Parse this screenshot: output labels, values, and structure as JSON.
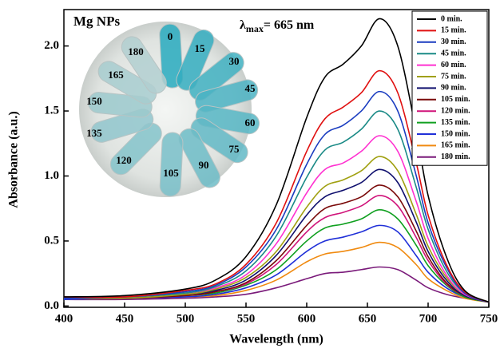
{
  "chart_data": {
    "type": "line",
    "x_label": "Wavelength (nm)",
    "y_label": "Absorbance (a.u.)",
    "inset_title": "Mg NPs",
    "peak_label": {
      "symbol": "λ",
      "subscript": "max",
      "text": "= 665 nm"
    },
    "inset_labels": [
      "0",
      "15",
      "30",
      "45",
      "60",
      "75",
      "90",
      "105",
      "120",
      "135",
      "150",
      "165",
      "180"
    ],
    "x": [
      400,
      450,
      500,
      525,
      550,
      575,
      600,
      615,
      630,
      645,
      660,
      675,
      690,
      700,
      715,
      730,
      750
    ],
    "xlim": [
      400,
      750
    ],
    "xticks": [
      400,
      450,
      500,
      550,
      600,
      650,
      700,
      750
    ],
    "ylim": [
      -0.01,
      2.28
    ],
    "yticks": [
      {
        "value": 0,
        "label": "0.0"
      },
      0.5,
      {
        "value": 1,
        "label": "1.0"
      },
      1.5,
      {
        "value": 2,
        "label": "2.0"
      }
    ],
    "legend": "upper right",
    "series": [
      {
        "name": "0 min.",
        "color": "#000000",
        "values": [
          0.07,
          0.08,
          0.13,
          0.2,
          0.38,
          0.78,
          1.45,
          1.76,
          1.86,
          2.0,
          2.21,
          2.0,
          1.35,
          0.85,
          0.38,
          0.12,
          0.03
        ]
      },
      {
        "name": "15 min.",
        "color": "#e01010",
        "values": [
          0.07,
          0.07,
          0.12,
          0.17,
          0.32,
          0.64,
          1.19,
          1.44,
          1.53,
          1.64,
          1.81,
          1.64,
          1.11,
          0.7,
          0.32,
          0.11,
          0.03
        ]
      },
      {
        "name": "30 min.",
        "color": "#1a3cc0",
        "values": [
          0.06,
          0.07,
          0.11,
          0.16,
          0.3,
          0.59,
          1.09,
          1.32,
          1.39,
          1.5,
          1.65,
          1.5,
          1.01,
          0.64,
          0.3,
          0.1,
          0.03
        ]
      },
      {
        "name": "45 min.",
        "color": "#1a8a86",
        "values": [
          0.06,
          0.07,
          0.1,
          0.15,
          0.27,
          0.54,
          0.99,
          1.2,
          1.26,
          1.36,
          1.5,
          1.36,
          0.92,
          0.59,
          0.27,
          0.1,
          0.03
        ]
      },
      {
        "name": "60 min.",
        "color": "#ff30d0",
        "values": [
          0.06,
          0.07,
          0.1,
          0.14,
          0.24,
          0.48,
          0.87,
          1.05,
          1.1,
          1.19,
          1.31,
          1.19,
          0.81,
          0.52,
          0.24,
          0.09,
          0.03
        ]
      },
      {
        "name": "75 min.",
        "color": "#a0a010",
        "values": [
          0.06,
          0.06,
          0.09,
          0.13,
          0.22,
          0.42,
          0.76,
          0.92,
          0.97,
          1.04,
          1.15,
          1.04,
          0.71,
          0.46,
          0.22,
          0.09,
          0.03
        ]
      },
      {
        "name": "90 min.",
        "color": "#10106e",
        "values": [
          0.06,
          0.06,
          0.09,
          0.12,
          0.2,
          0.39,
          0.7,
          0.84,
          0.89,
          0.95,
          1.05,
          0.95,
          0.65,
          0.42,
          0.2,
          0.08,
          0.03
        ]
      },
      {
        "name": "105 min.",
        "color": "#7a0a0a",
        "values": [
          0.06,
          0.06,
          0.08,
          0.11,
          0.18,
          0.35,
          0.62,
          0.75,
          0.79,
          0.84,
          0.93,
          0.84,
          0.58,
          0.38,
          0.18,
          0.08,
          0.03
        ]
      },
      {
        "name": "120 min.",
        "color": "#d0147a",
        "values": [
          0.06,
          0.06,
          0.08,
          0.11,
          0.17,
          0.32,
          0.57,
          0.68,
          0.72,
          0.77,
          0.85,
          0.77,
          0.53,
          0.35,
          0.17,
          0.08,
          0.03
        ]
      },
      {
        "name": "135 min.",
        "color": "#10a020",
        "values": [
          0.06,
          0.06,
          0.08,
          0.1,
          0.16,
          0.28,
          0.5,
          0.6,
          0.63,
          0.67,
          0.74,
          0.67,
          0.47,
          0.31,
          0.16,
          0.07,
          0.03
        ]
      },
      {
        "name": "150 min.",
        "color": "#2030d8",
        "values": [
          0.05,
          0.06,
          0.07,
          0.09,
          0.14,
          0.24,
          0.42,
          0.5,
          0.53,
          0.57,
          0.62,
          0.57,
          0.39,
          0.26,
          0.14,
          0.07,
          0.03
        ]
      },
      {
        "name": "165 min.",
        "color": "#f08a10",
        "values": [
          0.05,
          0.06,
          0.07,
          0.08,
          0.12,
          0.2,
          0.34,
          0.4,
          0.42,
          0.45,
          0.49,
          0.45,
          0.32,
          0.21,
          0.12,
          0.06,
          0.03
        ]
      },
      {
        "name": "180 min.",
        "color": "#7a1a7a",
        "values": [
          0.05,
          0.05,
          0.06,
          0.07,
          0.09,
          0.14,
          0.21,
          0.25,
          0.26,
          0.28,
          0.3,
          0.28,
          0.2,
          0.14,
          0.09,
          0.06,
          0.03
        ]
      }
    ]
  }
}
